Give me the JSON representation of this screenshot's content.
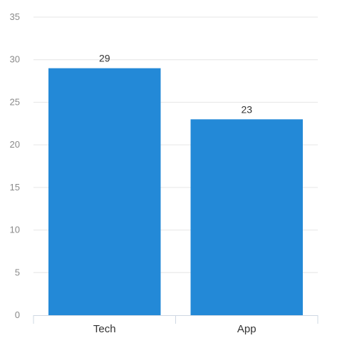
{
  "chart_data": {
    "type": "bar",
    "categories": [
      "Tech",
      "App"
    ],
    "values": [
      29,
      23
    ],
    "data_labels": [
      "29",
      "23"
    ],
    "title": "",
    "xlabel": "",
    "ylabel": "",
    "ylim": [
      0,
      35
    ],
    "y_ticks": [
      "0",
      "5",
      "10",
      "15",
      "20",
      "25",
      "30",
      "35"
    ],
    "grid": true,
    "legend": "none",
    "colors": {
      "bar": "#2389d7",
      "grid": "#e6e6e6",
      "axis": "#cfd8e3",
      "tick_text": "#8a8a8a",
      "category_text": "#333333",
      "label_text": "#333333"
    }
  }
}
